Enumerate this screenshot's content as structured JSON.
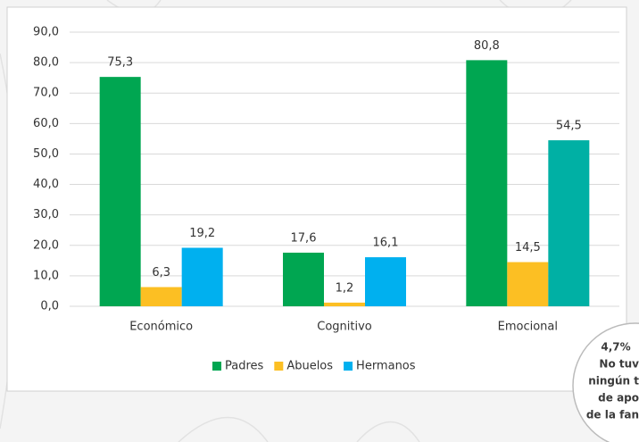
{
  "chart_data": {
    "type": "bar",
    "categories": [
      "Económico",
      "Cognitivo",
      "Emocional"
    ],
    "series": [
      {
        "name": "Padres",
        "color": "#00a651",
        "values": [
          75.3,
          17.6,
          80.8
        ],
        "value_labels": [
          "75,3",
          "17,6",
          "80,8"
        ]
      },
      {
        "name": "Abuelos",
        "color": "#fcbf23",
        "values": [
          6.3,
          1.2,
          14.5
        ],
        "value_labels": [
          "6,3",
          "1,2",
          "14,5"
        ]
      },
      {
        "name": "Hermanos",
        "color": "#00b0ef",
        "colors": [
          "#00b0ef",
          "#00b0ef",
          "#00b0a4"
        ],
        "values": [
          19.2,
          16.1,
          54.5
        ],
        "value_labels": [
          "19,2",
          "16,1",
          "54,5"
        ]
      }
    ],
    "ylim": [
      0,
      90
    ],
    "yticks": [
      {
        "value": 0,
        "label": "0,0"
      },
      {
        "value": 10,
        "label": "10,0"
      },
      {
        "value": 20,
        "label": "20,0"
      },
      {
        "value": 30,
        "label": "30,0"
      },
      {
        "value": 40,
        "label": "40,0"
      },
      {
        "value": 50,
        "label": "50,0"
      },
      {
        "value": 60,
        "label": "60,0"
      },
      {
        "value": 70,
        "label": "70,0"
      },
      {
        "value": 80,
        "label": "80,0"
      },
      {
        "value": 90,
        "label": "90,0"
      }
    ],
    "grid": true,
    "legend": "bottom",
    "annotation": [
      "4,7%",
      "No tuv",
      "ningún t",
      "de apo",
      "de la fan"
    ]
  }
}
